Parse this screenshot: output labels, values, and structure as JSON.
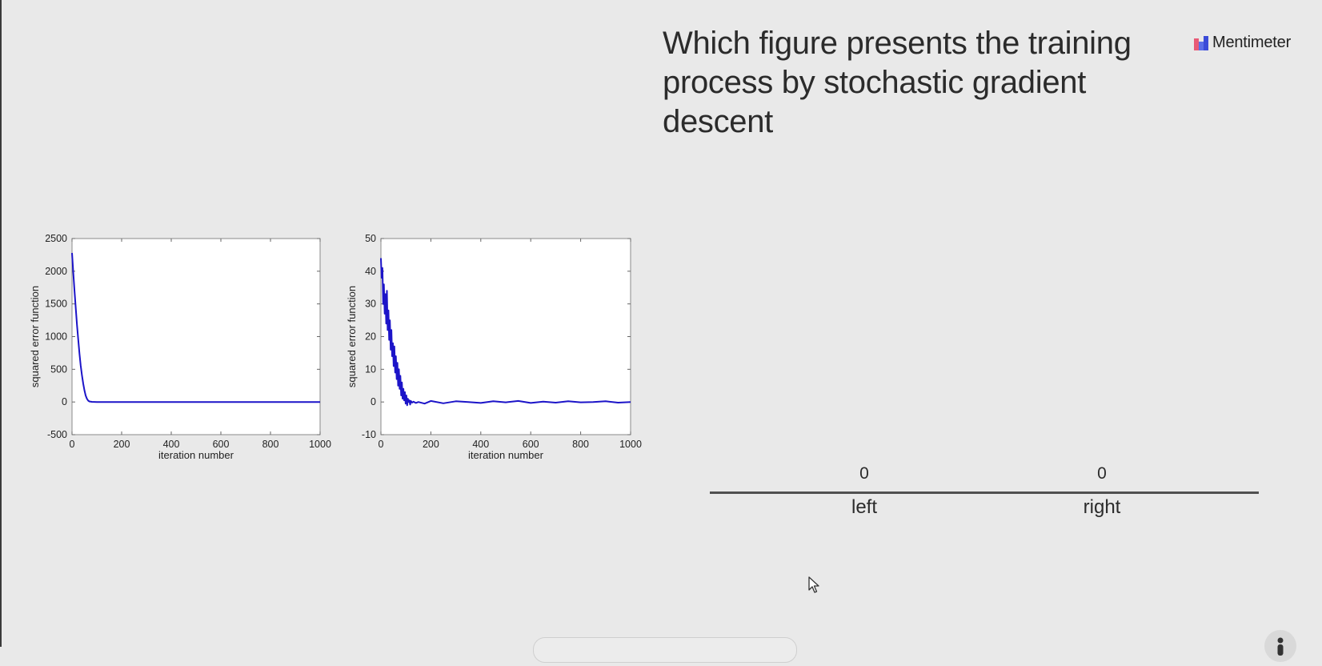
{
  "slide": {
    "question": "Which figure presents the training process by stochastic gradient descent",
    "brand_name": "Mentimeter"
  },
  "results": {
    "options": [
      {
        "label": "left",
        "count": "0"
      },
      {
        "label": "right",
        "count": "0"
      }
    ]
  },
  "icons": {
    "brand_logo": "mentimeter-logo-icon",
    "cursor": "mouse-pointer-icon",
    "user": "user-icon"
  },
  "colors": {
    "background": "#e9e9e9",
    "line": "#1c14c8",
    "text": "#2b2b2b"
  },
  "chart_data": [
    {
      "type": "line",
      "title": "",
      "xlabel": "iteration number",
      "ylabel": "squared error function",
      "xlim": [
        0,
        1000
      ],
      "ylim": [
        -500,
        2500
      ],
      "xticks": [
        0,
        200,
        400,
        600,
        800,
        1000
      ],
      "yticks": [
        -500,
        0,
        500,
        1000,
        1500,
        2000,
        2500
      ],
      "grid": false,
      "series": [
        {
          "x": [
            0,
            5,
            10,
            15,
            20,
            25,
            30,
            35,
            40,
            45,
            50,
            55,
            60,
            65,
            70,
            80,
            100,
            200,
            400,
            600,
            800,
            1000
          ],
          "y": [
            2280,
            1990,
            1700,
            1430,
            1180,
            950,
            740,
            560,
            410,
            280,
            180,
            100,
            50,
            20,
            8,
            2,
            0,
            0,
            0,
            0,
            0,
            0
          ]
        }
      ]
    },
    {
      "type": "line",
      "title": "",
      "xlabel": "iteration number",
      "ylabel": "squared error function",
      "xlim": [
        0,
        1000
      ],
      "ylim": [
        -10,
        50
      ],
      "xticks": [
        0,
        200,
        400,
        600,
        800,
        1000
      ],
      "yticks": [
        -10,
        0,
        10,
        20,
        30,
        40,
        50
      ],
      "grid": false,
      "series": [
        {
          "x": [
            0,
            3,
            6,
            9,
            12,
            15,
            18,
            21,
            24,
            27,
            30,
            33,
            36,
            39,
            42,
            45,
            48,
            51,
            54,
            57,
            60,
            63,
            66,
            69,
            72,
            75,
            78,
            81,
            84,
            87,
            90,
            93,
            96,
            99,
            102,
            105,
            108,
            111,
            114,
            117,
            120,
            125,
            130,
            140,
            150,
            175,
            200,
            250,
            300,
            350,
            400,
            450,
            500,
            550,
            600,
            650,
            700,
            750,
            800,
            850,
            900,
            950,
            1000
          ],
          "y": [
            44,
            38,
            41,
            30,
            36,
            27,
            33,
            24,
            34,
            22,
            28,
            19,
            25,
            16,
            22,
            14,
            18,
            11,
            17,
            9,
            14,
            7,
            12,
            5,
            10,
            4,
            8,
            2,
            6,
            1,
            4,
            0.5,
            3,
            -0.5,
            2,
            -1,
            1,
            0,
            0.5,
            -0.8,
            0.3,
            -0.2,
            0.1,
            -0.3,
            0,
            -0.5,
            0.3,
            -0.4,
            0.2,
            0,
            -0.3,
            0.2,
            -0.1,
            0.3,
            -0.3,
            0.1,
            -0.2,
            0.2,
            -0.1,
            0,
            0.2,
            -0.2,
            0
          ]
        }
      ]
    }
  ]
}
